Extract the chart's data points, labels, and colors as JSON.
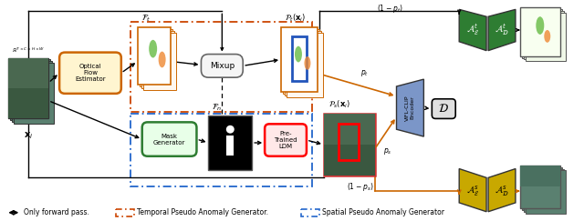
{
  "fig_width": 6.4,
  "fig_height": 2.43,
  "dpi": 100,
  "bg_color": "#ffffff",
  "input_label": "$\\mathbb{R}^{T\\times C\\times H\\times W}$",
  "input_x_label": "$\\mathbf{x}_i$",
  "optical_flow_label": "Optical\nFlow\nEstimator",
  "mask_gen_label": "Mask\nGenerator",
  "mixup_label": "Mixup",
  "pretrained_ldm_label": "Pre-\nTrained\nLDM",
  "encoder_label": "ViFL-CLIP\nEncoder",
  "discriminator_label": "$\\mathcal{D}$",
  "ft_label": "$\\mathcal{F}_t$",
  "fn_label": "$\\mathcal{F}_n$",
  "pt_label": "$\\mathcal{P}_t(\\mathbf{x}_i)$",
  "ps_label": "$\\mathcal{P}_s(\\mathbf{x}_i)$",
  "pt_prob_top": "$(1 - p_t)$",
  "pt_prob_bot": "$p_t$",
  "ps_prob_top": "$p_s$",
  "ps_prob_bot": "$(1 - p_s)$",
  "ae_t_label": "$\\mathcal{A}^t_\\mathcal{E}$",
  "ad_t_label": "$\\mathcal{A}^t_\\mathcal{D}$",
  "ae_s_label": "$\\mathcal{A}^s_\\mathcal{E}$",
  "ad_s_label": "$\\mathcal{A}^s_\\mathcal{D}$",
  "legend_fwd": "Only forward pass.",
  "legend_temp": "Temporal Pseudo Anomaly Generator.",
  "legend_spat": "Spatial Pseudo Anomaly Generator",
  "color_orange": "#CC6600",
  "color_green": "#2E7D32",
  "color_yellow": "#C8A800",
  "color_blue_enc": "#7B96C8",
  "color_dashed_orange": "#CC4400",
  "color_dashed_blue": "#2266CC",
  "color_gray": "#888888",
  "color_black": "#111111",
  "color_white": "#ffffff"
}
